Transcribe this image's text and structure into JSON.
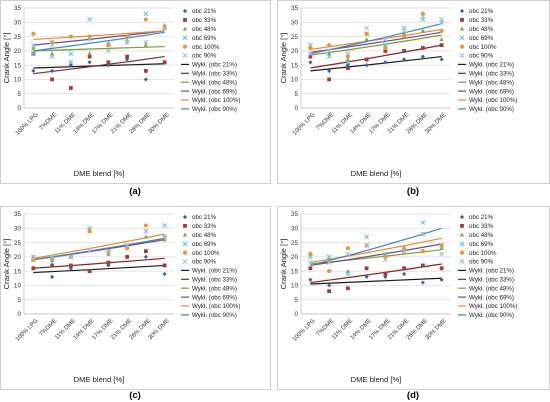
{
  "series_styles": [
    {
      "name": "obc 21%",
      "color": "#2e6aa8",
      "marker": "diamond"
    },
    {
      "name": "obc 33%",
      "color": "#a33b3a",
      "marker": "square"
    },
    {
      "name": "obc 48%",
      "color": "#8aa63e",
      "marker": "triangle"
    },
    {
      "name": "obc 69%",
      "color": "#5ec8e6",
      "marker": "x"
    },
    {
      "name": "obc 100%",
      "color": "#f0962d",
      "marker": "circle"
    },
    {
      "name": "obc 90%",
      "color": "#9fbfe3",
      "marker": "x"
    }
  ],
  "trend_styles": [
    {
      "name": "Wykł. (obc 21%)",
      "color": "#1b1b1b"
    },
    {
      "name": "Wykł. (obc 33%)",
      "color": "#8c2221"
    },
    {
      "name": "Wykł. (obc 48%)",
      "color": "#7c9c34"
    },
    {
      "name": "Wykł. (obc 69%)",
      "color": "#6b4d8f"
    },
    {
      "name": "Wykł. (obc 100%)",
      "color": "#e68a2e"
    },
    {
      "name": "Wykł. (obc 90%)",
      "color": "#3f84c5"
    }
  ],
  "chart_data": [
    {
      "panel": "(a)",
      "type": "scatter",
      "xlabel": "DME blend [%]",
      "ylabel": "Crank Angle [°]",
      "ylim": [
        0,
        35
      ],
      "yticks": [
        0,
        5,
        10,
        15,
        20,
        25,
        30,
        35
      ],
      "categories": [
        "100% LPG",
        "7%DME",
        "11% DME",
        "14% DME",
        "17% DME",
        "21% DME",
        "26% DME",
        "30% DME"
      ],
      "grid": true,
      "legend": "right",
      "series": [
        {
          "name": "obc 21%",
          "values": [
            13,
            13,
            15,
            16,
            15,
            17,
            10,
            16
          ]
        },
        {
          "name": "obc 33%",
          "values": [
            19,
            10,
            7,
            18,
            16,
            18,
            13,
            16
          ]
        },
        {
          "name": "obc 48%",
          "values": [
            21,
            19,
            16,
            19,
            22,
            23,
            22,
            29
          ]
        },
        {
          "name": "obc 69%",
          "values": [
            19,
            18,
            19,
            31,
            23,
            24,
            33,
            28
          ]
        },
        {
          "name": "obc 100%",
          "values": [
            26,
            23,
            25,
            25,
            22,
            25,
            31,
            28
          ]
        },
        {
          "name": "obc 90%",
          "values": [
            22,
            22,
            16,
            24,
            20,
            23,
            23,
            28
          ]
        }
      ],
      "trendlines": [
        {
          "name": "Wykł. (obc 21%)",
          "start": 14,
          "end": 15.5
        },
        {
          "name": "Wykł. (obc 33%)",
          "start": 12,
          "end": 18
        },
        {
          "name": "Wykł. (obc 48%)",
          "start": 20,
          "end": 21.5
        },
        {
          "name": "Wykł. (obc 69%)",
          "start": 22,
          "end": 27
        },
        {
          "name": "Wykł. (obc 100%)",
          "start": 24,
          "end": 27
        },
        {
          "name": "Wykł. (obc 90%)",
          "start": 20,
          "end": 26.5
        }
      ]
    },
    {
      "panel": "(b)",
      "type": "scatter",
      "xlabel": "DME blend [%]",
      "ylabel": "Crank Angle [°]",
      "ylim": [
        0,
        35
      ],
      "yticks": [
        0,
        5,
        10,
        15,
        20,
        25,
        30,
        35
      ],
      "categories": [
        "100% LPG",
        "7%DME",
        "11% DME",
        "14% DME",
        "17% DME",
        "21% DME",
        "26% DME",
        "30% DME"
      ],
      "grid": true,
      "legend": "right",
      "series": [
        {
          "name": "obc 21%",
          "values": [
            16,
            13,
            15,
            15,
            16,
            17,
            18,
            17
          ]
        },
        {
          "name": "obc 33%",
          "values": [
            18,
            10,
            14,
            17,
            20,
            20,
            21,
            22
          ]
        },
        {
          "name": "obc 48%",
          "values": [
            21,
            19,
            17,
            24,
            22,
            26,
            27,
            24
          ]
        },
        {
          "name": "obc 69%",
          "values": [
            22,
            18,
            16,
            26,
            22,
            28,
            31,
            30
          ]
        },
        {
          "name": "obc 100%",
          "values": [
            21,
            22,
            18,
            26,
            21,
            25,
            33,
            27
          ]
        },
        {
          "name": "obc 90%",
          "values": [
            19,
            20,
            19,
            28,
            24,
            27,
            32,
            31
          ]
        }
      ],
      "trendlines": [
        {
          "name": "Wykł. (obc 21%)",
          "start": 13,
          "end": 18
        },
        {
          "name": "Wykł. (obc 33%)",
          "start": 14,
          "end": 22
        },
        {
          "name": "Wykł. (obc 48%)",
          "start": 18.5,
          "end": 25.5
        },
        {
          "name": "Wykł. (obc 69%)",
          "start": 19.5,
          "end": 26.5
        },
        {
          "name": "Wykł. (obc 100%)",
          "start": 20.5,
          "end": 27.5
        },
        {
          "name": "Wykł. (obc 90%)",
          "start": 19,
          "end": 29.5
        }
      ]
    },
    {
      "panel": "(c)",
      "type": "scatter",
      "xlabel": "DME blend [%]",
      "ylabel": "Crank Angle [°]",
      "ylim": [
        0,
        35
      ],
      "yticks": [
        0,
        5,
        10,
        15,
        20,
        25,
        30,
        35
      ],
      "categories": [
        "100% LPG",
        "7%DME",
        "11% DME",
        "14% DME",
        "17% DME",
        "21% DME",
        "26% DME",
        "30% DME"
      ],
      "grid": true,
      "legend": "right",
      "series": [
        {
          "name": "obc 21%",
          "values": [
            16,
            13,
            16,
            15,
            17,
            20,
            20,
            14
          ]
        },
        {
          "name": "obc 33%",
          "values": [
            16,
            17,
            17,
            15,
            18,
            20,
            22,
            17
          ]
        },
        {
          "name": "obc 48%",
          "values": [
            20,
            19,
            20,
            29,
            21,
            24,
            27,
            26
          ]
        },
        {
          "name": "obc 69%",
          "values": [
            19,
            18,
            20,
            30,
            22,
            24,
            29,
            31
          ]
        },
        {
          "name": "obc 100%",
          "values": [
            19,
            19,
            20,
            29,
            22,
            23,
            31,
            27
          ]
        },
        {
          "name": "obc 90%",
          "values": [
            20,
            20,
            20,
            22,
            22,
            24,
            29,
            27
          ]
        }
      ],
      "trendlines": [
        {
          "name": "Wykł. (obc 21%)",
          "start": 14.5,
          "end": 17
        },
        {
          "name": "Wykł. (obc 33%)",
          "start": 16,
          "end": 19.5
        },
        {
          "name": "Wykł. (obc 48%)",
          "start": 19,
          "end": 26.5
        },
        {
          "name": "Wykł. (obc 69%)",
          "start": 19,
          "end": 26
        },
        {
          "name": "Wykł. (obc 100%)",
          "start": 19.5,
          "end": 28
        },
        {
          "name": "Wykł. (obc 90%)",
          "start": 19,
          "end": 26.5
        }
      ]
    },
    {
      "panel": "(d)",
      "type": "scatter",
      "xlabel": "DME blend [%]",
      "ylabel": "Crank Angle [°]",
      "ylim": [
        0,
        35
      ],
      "yticks": [
        0,
        5,
        10,
        15,
        20,
        25,
        30,
        35
      ],
      "categories": [
        "100% LPG",
        "7%DME",
        "11% DME",
        "14% DME",
        "17% DME",
        "21% DME",
        "26% DME",
        "30% DME"
      ],
      "grid": true,
      "legend": "right",
      "series": [
        {
          "name": "obc 21%",
          "values": [
            12,
            10,
            9,
            13,
            13,
            14,
            11,
            12
          ]
        },
        {
          "name": "obc 33%",
          "values": [
            16,
            8,
            9,
            16,
            14,
            16,
            17,
            16
          ]
        },
        {
          "name": "obc 48%",
          "values": [
            21,
            19,
            15,
            24,
            21,
            22,
            28,
            23
          ]
        },
        {
          "name": "obc 69%",
          "values": [
            20,
            20,
            14,
            27,
            21,
            22,
            32,
            24
          ]
        },
        {
          "name": "obc 100%",
          "values": [
            21,
            15,
            23,
            24,
            20,
            23,
            22,
            24
          ]
        },
        {
          "name": "obc 90%",
          "values": [
            18,
            18,
            21,
            24,
            19,
            22,
            28,
            21
          ]
        }
      ],
      "trendlines": [
        {
          "name": "Wykł. (obc 21%)",
          "start": 10.5,
          "end": 12.5
        },
        {
          "name": "Wykł. (obc 33%)",
          "start": 11,
          "end": 17.5
        },
        {
          "name": "Wykł. (obc 48%)",
          "start": 17.5,
          "end": 22.5
        },
        {
          "name": "Wykł. (obc 69%)",
          "start": 17,
          "end": 24.5
        },
        {
          "name": "Wykł. (obc 100%)",
          "start": 18,
          "end": 26.5
        },
        {
          "name": "Wykł. (obc 90%)",
          "start": 17,
          "end": 30
        }
      ]
    }
  ]
}
